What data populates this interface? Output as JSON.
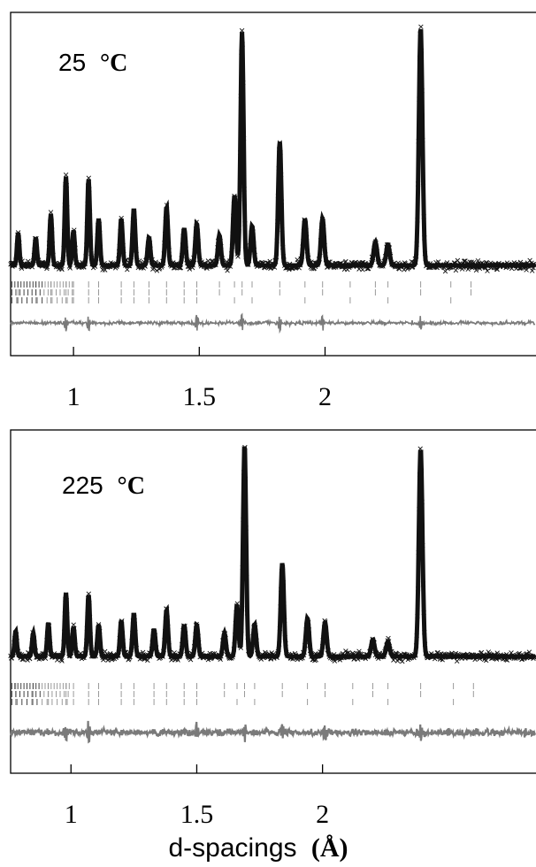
{
  "x_axis_label": {
    "text": "d-spacings",
    "unit": "(Å)"
  },
  "chart_data": [
    {
      "type": "scatter",
      "title": "25 °C",
      "temperature_value": "25",
      "temperature_unit": "°C",
      "xlabel": "d-spacings (Å)",
      "xlim": [
        0.75,
        2.93
      ],
      "xticks": [
        1,
        1.5,
        2
      ],
      "xtick_labels": [
        "1",
        "1.5",
        "2"
      ],
      "y_axis_shown": false,
      "grid": false,
      "legend": "none",
      "colors": {
        "observed": "#111111",
        "difference": "#7a7a7a",
        "tick_marks": "#9a9a9a"
      },
      "series": [
        {
          "role": "observed",
          "marker": "x",
          "baseline_rel": 0.1,
          "peaks": [
            {
              "x": 0.78,
              "rel": 0.14
            },
            {
              "x": 0.85,
              "rel": 0.12
            },
            {
              "x": 0.91,
              "rel": 0.22
            },
            {
              "x": 0.97,
              "rel": 0.38
            },
            {
              "x": 1.0,
              "rel": 0.15
            },
            {
              "x": 1.06,
              "rel": 0.37
            },
            {
              "x": 1.1,
              "rel": 0.2
            },
            {
              "x": 1.19,
              "rel": 0.2
            },
            {
              "x": 1.24,
              "rel": 0.24
            },
            {
              "x": 1.3,
              "rel": 0.12
            },
            {
              "x": 1.37,
              "rel": 0.25
            },
            {
              "x": 1.44,
              "rel": 0.16
            },
            {
              "x": 1.49,
              "rel": 0.18
            },
            {
              "x": 1.58,
              "rel": 0.13
            },
            {
              "x": 1.64,
              "rel": 0.3
            },
            {
              "x": 1.67,
              "rel": 1.0
            },
            {
              "x": 1.71,
              "rel": 0.17
            },
            {
              "x": 1.82,
              "rel": 0.53
            },
            {
              "x": 1.92,
              "rel": 0.2
            },
            {
              "x": 1.99,
              "rel": 0.2
            },
            {
              "x": 2.2,
              "rel": 0.1
            },
            {
              "x": 2.25,
              "rel": 0.09
            },
            {
              "x": 2.38,
              "rel": 1.02
            }
          ]
        },
        {
          "role": "reflection_tick_marks",
          "phase_rows": 3,
          "positions": [
            0.78,
            0.85,
            0.91,
            0.97,
            1.0,
            1.06,
            1.1,
            1.19,
            1.24,
            1.3,
            1.37,
            1.44,
            1.49,
            1.58,
            1.64,
            1.67,
            1.71,
            1.82,
            1.92,
            1.99,
            2.1,
            2.2,
            2.25,
            2.38,
            2.5,
            2.58
          ]
        },
        {
          "role": "difference",
          "marked_x": [
            0.97,
            1.06,
            1.49,
            1.67,
            1.82,
            1.99,
            2.38
          ]
        }
      ]
    },
    {
      "type": "scatter",
      "title": "225 °C",
      "temperature_value": "225",
      "temperature_unit": "°C",
      "xlabel": "d-spacings (Å)",
      "xlim": [
        0.76,
        2.94
      ],
      "xticks": [
        1,
        1.5,
        2
      ],
      "xtick_labels": [
        "1",
        "1.5",
        "2"
      ],
      "y_axis_shown": false,
      "grid": false,
      "legend": "none",
      "colors": {
        "observed": "#111111",
        "difference": "#7a7a7a",
        "tick_marks": "#9a9a9a"
      },
      "series": [
        {
          "role": "observed",
          "marker": "x",
          "baseline_rel": 0.1,
          "peaks": [
            {
              "x": 0.78,
              "rel": 0.12
            },
            {
              "x": 0.85,
              "rel": 0.11
            },
            {
              "x": 0.91,
              "rel": 0.16
            },
            {
              "x": 0.98,
              "rel": 0.3
            },
            {
              "x": 1.01,
              "rel": 0.14
            },
            {
              "x": 1.07,
              "rel": 0.29
            },
            {
              "x": 1.11,
              "rel": 0.15
            },
            {
              "x": 1.2,
              "rel": 0.17
            },
            {
              "x": 1.25,
              "rel": 0.2
            },
            {
              "x": 1.33,
              "rel": 0.13
            },
            {
              "x": 1.38,
              "rel": 0.22
            },
            {
              "x": 1.45,
              "rel": 0.15
            },
            {
              "x": 1.5,
              "rel": 0.15
            },
            {
              "x": 1.61,
              "rel": 0.11
            },
            {
              "x": 1.66,
              "rel": 0.24
            },
            {
              "x": 1.69,
              "rel": 1.0
            },
            {
              "x": 1.73,
              "rel": 0.15
            },
            {
              "x": 1.84,
              "rel": 0.44
            },
            {
              "x": 1.94,
              "rel": 0.18
            },
            {
              "x": 2.01,
              "rel": 0.16
            },
            {
              "x": 2.2,
              "rel": 0.08
            },
            {
              "x": 2.26,
              "rel": 0.07
            },
            {
              "x": 2.39,
              "rel": 0.98
            }
          ]
        },
        {
          "role": "reflection_tick_marks",
          "phase_rows": 3,
          "positions": [
            0.78,
            0.85,
            0.91,
            0.98,
            1.01,
            1.07,
            1.11,
            1.2,
            1.25,
            1.33,
            1.38,
            1.45,
            1.5,
            1.61,
            1.66,
            1.69,
            1.73,
            1.84,
            1.94,
            2.01,
            2.12,
            2.2,
            2.26,
            2.39,
            2.52,
            2.6
          ]
        },
        {
          "role": "difference",
          "marked_x": [
            0.98,
            1.07,
            1.5,
            1.69,
            1.84,
            2.01,
            2.39
          ]
        }
      ]
    }
  ]
}
